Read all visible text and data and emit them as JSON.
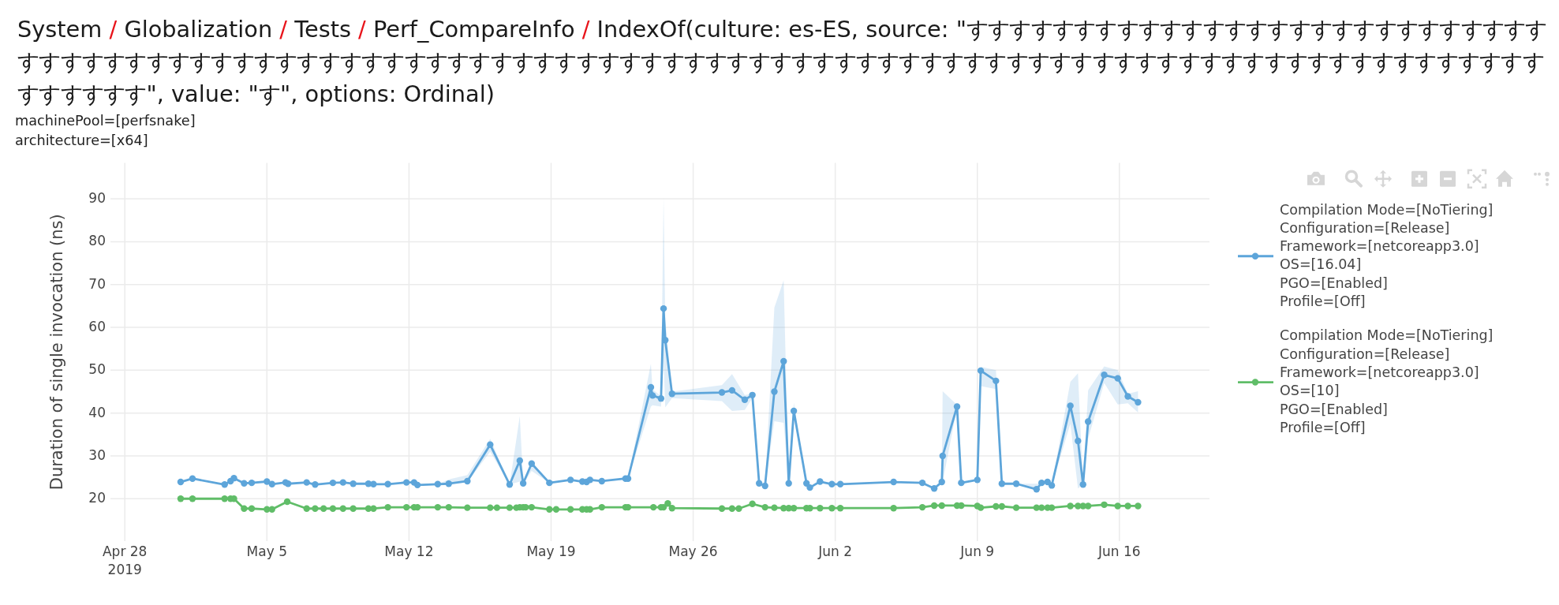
{
  "chart_data": {
    "type": "line",
    "title": "System / Globalization / Tests / Perf_CompareInfo / IndexOf(culture: es-ES, source: \"すすすすすすすすすすすすすすすすすすすすすすすすすすすすすすすすすすすすすすすすすすすすすすすすすすすすすすすすすすすすすすすすすすすすすすすすすすすすすすすすすすすすすすすすすすすすすすすすすすすすすすすす\", value: \"す\", options: Ordinal)",
    "subtitle": "machinePool=[perfsnake]\narchitecture=[x64]",
    "ylabel": "Duration of single invocation (ns)",
    "xlim": [
      "2019-04-27T07:00",
      "2019-06-20T10:30"
    ],
    "xticks": [
      {
        "value": "2019-04-28",
        "label": "Apr 28\n2019"
      },
      {
        "value": "2019-05-05",
        "label": "May 5"
      },
      {
        "value": "2019-05-12",
        "label": "May 12"
      },
      {
        "value": "2019-05-19",
        "label": "May 19"
      },
      {
        "value": "2019-05-26",
        "label": "May 26"
      },
      {
        "value": "2019-06-02",
        "label": "Jun 2"
      },
      {
        "value": "2019-06-09",
        "label": "Jun 9"
      },
      {
        "value": "2019-06-16",
        "label": "Jun 16"
      }
    ],
    "ylim": [
      10.1,
      98.4
    ],
    "yticks": [
      20,
      30,
      40,
      50,
      60,
      70,
      80,
      90
    ],
    "grid": true,
    "legend": "top right",
    "marker": "circle",
    "series": [
      {
        "name": "Compilation Mode=[NoTiering]\nConfiguration=[Release]\nFramework=[netcoreapp3.0]\nOS=[16.04]\nPGO=[Enabled]\nProfile=[Off]",
        "color": "#5da5da",
        "x": [
          "2019-04-30T18:00",
          "2019-05-01T08:00",
          "2019-05-02T22:00",
          "2019-05-03T05:00",
          "2019-05-03T09:00",
          "2019-05-03T21:00",
          "2019-05-04T06:00",
          "2019-05-05T00:00",
          "2019-05-05T06:00",
          "2019-05-05T22:00",
          "2019-05-06T01:00",
          "2019-05-06T23:00",
          "2019-05-07T09:00",
          "2019-05-08T06:00",
          "2019-05-08T18:00",
          "2019-05-09T06:00",
          "2019-05-10T00:00",
          "2019-05-10T06:00",
          "2019-05-10T23:00",
          "2019-05-11T21:00",
          "2019-05-12T06:00",
          "2019-05-12T10:00",
          "2019-05-13T10:00",
          "2019-05-13T23:00",
          "2019-05-14T21:00",
          "2019-05-16T00:00",
          "2019-05-16T23:00",
          "2019-05-17T11:00",
          "2019-05-17T15:00",
          "2019-05-18T01:00",
          "2019-05-18T22:00",
          "2019-05-19T23:00",
          "2019-05-20T13:00",
          "2019-05-20T18:00",
          "2019-05-20T22:00",
          "2019-05-21T12:00",
          "2019-05-22T16:00",
          "2019-05-22T19:00",
          "2019-05-23T22:00",
          "2019-05-24T00:00",
          "2019-05-24T10:00",
          "2019-05-24T13:00",
          "2019-05-24T15:00",
          "2019-05-24T23:00",
          "2019-05-27T10:00",
          "2019-05-27T22:00",
          "2019-05-28T13:00",
          "2019-05-28T22:00",
          "2019-05-29T06:00",
          "2019-05-29T13:00",
          "2019-05-30T00:00",
          "2019-05-30T11:00",
          "2019-05-30T17:00",
          "2019-05-30T23:00",
          "2019-05-31T14:00",
          "2019-05-31T18:00",
          "2019-06-01T06:00",
          "2019-06-01T20:00",
          "2019-06-02T06:00",
          "2019-06-04T21:00",
          "2019-06-06T07:00",
          "2019-06-06T21:00",
          "2019-06-07T06:00",
          "2019-06-07T07:00",
          "2019-06-08T00:00",
          "2019-06-08T05:00",
          "2019-06-09T00:00",
          "2019-06-09T04:00",
          "2019-06-09T22:00",
          "2019-06-10T05:00",
          "2019-06-10T22:00",
          "2019-06-11T22:00",
          "2019-06-12T04:00",
          "2019-06-12T11:00",
          "2019-06-12T16:00",
          "2019-06-13T14:00",
          "2019-06-13T23:00",
          "2019-06-14T05:00",
          "2019-06-14T11:00",
          "2019-06-15T06:00",
          "2019-06-15T22:00",
          "2019-06-16T10:00",
          "2019-06-16T22:00"
        ],
        "values": [
          23.9,
          24.7,
          23.3,
          24.1,
          24.8,
          23.6,
          23.7,
          24.0,
          23.4,
          23.8,
          23.5,
          23.8,
          23.3,
          23.7,
          23.8,
          23.5,
          23.5,
          23.4,
          23.4,
          23.8,
          23.8,
          23.2,
          23.4,
          23.5,
          24.1,
          32.6,
          23.3,
          28.9,
          23.6,
          28.2,
          23.7,
          24.4,
          24.0,
          23.9,
          24.4,
          24.1,
          24.7,
          24.7,
          46.0,
          44.1,
          43.4,
          64.4,
          57.0,
          44.5,
          44.8,
          45.3,
          43.1,
          44.2,
          23.6,
          23.0,
          45.0,
          52.1,
          23.6,
          40.5,
          23.6,
          22.6,
          24.0,
          23.4,
          23.4,
          23.9,
          23.7,
          22.4,
          23.9,
          30.0,
          41.5,
          23.7,
          24.4,
          49.9,
          47.5,
          23.5,
          23.5,
          22.2,
          23.7,
          23.9,
          23.1,
          41.7,
          33.5,
          23.3,
          38.0,
          48.9,
          48.1,
          43.9,
          42.5
        ],
        "lower": [
          23.9,
          24.7,
          23.3,
          24.1,
          24.8,
          23.6,
          23.7,
          24.0,
          23.4,
          23.8,
          23.5,
          23.8,
          23.3,
          23.7,
          23.8,
          23.5,
          23.5,
          23.4,
          23.4,
          23.8,
          23.8,
          23.2,
          23.4,
          23.5,
          23.8,
          31.0,
          23.3,
          24.0,
          23.4,
          26.5,
          23.7,
          24.4,
          24.0,
          23.9,
          24.4,
          24.1,
          24.7,
          24.7,
          41.5,
          41.8,
          41.5,
          52.0,
          41.3,
          43.5,
          42.8,
          40.5,
          40.7,
          43.5,
          23.6,
          23.0,
          38.1,
          37.7,
          23.6,
          39.0,
          23.6,
          22.6,
          24.0,
          23.4,
          23.4,
          23.9,
          23.7,
          22.4,
          23.9,
          23.9,
          41.2,
          23.7,
          24.4,
          46.3,
          45.6,
          23.5,
          23.5,
          22.2,
          23.7,
          23.9,
          23.1,
          37.5,
          22.4,
          23.3,
          34.0,
          47.0,
          42.0,
          42.3,
          40.1
        ],
        "upper": [
          23.9,
          24.7,
          23.3,
          24.1,
          24.8,
          23.6,
          23.7,
          24.0,
          23.4,
          23.8,
          23.5,
          23.8,
          23.3,
          23.7,
          23.8,
          23.5,
          23.5,
          23.4,
          23.4,
          23.8,
          23.8,
          23.2,
          23.4,
          24.5,
          25.5,
          34.0,
          23.3,
          39.3,
          24.0,
          28.8,
          23.7,
          24.4,
          24.0,
          23.9,
          24.4,
          24.1,
          24.7,
          24.7,
          51.5,
          45.5,
          44.0,
          90.4,
          62.0,
          45.0,
          46.5,
          49.1,
          44.2,
          44.5,
          23.6,
          23.0,
          64.6,
          71.0,
          23.6,
          42.4,
          23.6,
          22.6,
          24.0,
          23.4,
          23.4,
          23.9,
          23.7,
          22.4,
          23.9,
          45.1,
          41.9,
          23.7,
          24.4,
          50.8,
          50.0,
          23.5,
          23.5,
          23.5,
          23.7,
          23.9,
          23.1,
          47.3,
          49.3,
          23.3,
          45.3,
          50.9,
          50.0,
          44.5,
          45.1
        ]
      },
      {
        "name": "Compilation Mode=[NoTiering]\nConfiguration=[Release]\nFramework=[netcoreapp3.0]\nOS=[10]\nPGO=[Enabled]\nProfile=[Off]",
        "color": "#60bd68",
        "x": [
          "2019-04-30T18:00",
          "2019-05-01T08:00",
          "2019-05-02T22:00",
          "2019-05-03T05:00",
          "2019-05-03T09:00",
          "2019-05-03T21:00",
          "2019-05-04T06:00",
          "2019-05-05T00:00",
          "2019-05-05T06:00",
          "2019-05-06T00:00",
          "2019-05-06T23:00",
          "2019-05-07T09:00",
          "2019-05-07T19:00",
          "2019-05-08T06:00",
          "2019-05-08T18:00",
          "2019-05-09T06:00",
          "2019-05-10T00:00",
          "2019-05-10T06:00",
          "2019-05-10T23:00",
          "2019-05-11T21:00",
          "2019-05-12T06:00",
          "2019-05-12T10:00",
          "2019-05-13T10:00",
          "2019-05-13T23:00",
          "2019-05-14T21:00",
          "2019-05-16T00:00",
          "2019-05-16T08:00",
          "2019-05-16T23:00",
          "2019-05-17T07:00",
          "2019-05-17T11:00",
          "2019-05-17T15:00",
          "2019-05-17T18:00",
          "2019-05-18T01:00",
          "2019-05-18T22:00",
          "2019-05-19T06:00",
          "2019-05-19T23:00",
          "2019-05-20T13:00",
          "2019-05-20T18:00",
          "2019-05-20T22:00",
          "2019-05-21T12:00",
          "2019-05-22T16:00",
          "2019-05-22T19:00",
          "2019-05-24T01:00",
          "2019-05-24T10:00",
          "2019-05-24T13:00",
          "2019-05-24T18:00",
          "2019-05-24T23:00",
          "2019-05-27T10:00",
          "2019-05-27T22:00",
          "2019-05-28T06:00",
          "2019-05-28T22:00",
          "2019-05-29T13:00",
          "2019-05-30T00:00",
          "2019-05-30T11:00",
          "2019-05-30T17:00",
          "2019-05-30T23:00",
          "2019-05-31T14:00",
          "2019-05-31T18:00",
          "2019-06-01T06:00",
          "2019-06-01T20:00",
          "2019-06-02T06:00",
          "2019-06-04T21:00",
          "2019-06-06T07:00",
          "2019-06-06T21:00",
          "2019-06-07T06:00",
          "2019-06-08T00:00",
          "2019-06-08T05:00",
          "2019-06-09T00:00",
          "2019-06-09T04:00",
          "2019-06-09T22:00",
          "2019-06-10T05:00",
          "2019-06-10T22:00",
          "2019-06-11T22:00",
          "2019-06-12T04:00",
          "2019-06-12T11:00",
          "2019-06-12T16:00",
          "2019-06-13T14:00",
          "2019-06-13T23:00",
          "2019-06-14T05:00",
          "2019-06-14T11:00",
          "2019-06-15T06:00",
          "2019-06-15T22:00",
          "2019-06-16T10:00",
          "2019-06-16T22:00"
        ],
        "values": [
          20.0,
          20.0,
          20.0,
          20.0,
          20.0,
          17.7,
          17.7,
          17.5,
          17.5,
          19.3,
          17.7,
          17.7,
          17.7,
          17.7,
          17.7,
          17.7,
          17.7,
          17.7,
          18.0,
          18.0,
          18.0,
          18.0,
          18.0,
          18.0,
          17.9,
          17.9,
          17.9,
          17.9,
          17.9,
          18.0,
          18.0,
          18.0,
          18.0,
          17.5,
          17.5,
          17.5,
          17.5,
          17.5,
          17.5,
          18.0,
          18.0,
          18.0,
          18.0,
          18.0,
          18.0,
          18.9,
          17.8,
          17.7,
          17.7,
          17.7,
          18.8,
          18.0,
          17.9,
          17.8,
          17.8,
          17.8,
          17.8,
          17.8,
          17.8,
          17.8,
          17.8,
          17.8,
          18.0,
          18.4,
          18.4,
          18.4,
          18.4,
          18.3,
          17.9,
          18.2,
          18.2,
          17.9,
          17.9,
          17.9,
          17.9,
          17.9,
          18.3,
          18.3,
          18.3,
          18.3,
          18.6,
          18.3,
          18.3,
          18.3
        ]
      }
    ]
  }
}
